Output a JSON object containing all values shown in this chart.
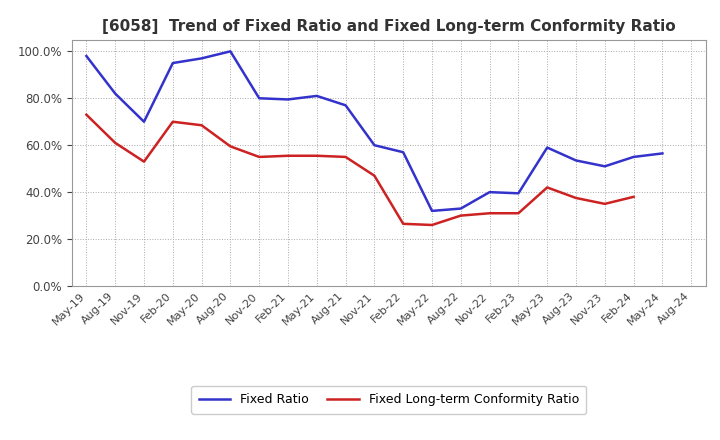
{
  "title": "[6058]  Trend of Fixed Ratio and Fixed Long-term Conformity Ratio",
  "x_labels": [
    "May-19",
    "Aug-19",
    "Nov-19",
    "Feb-20",
    "May-20",
    "Aug-20",
    "Nov-20",
    "Feb-21",
    "May-21",
    "Aug-21",
    "Nov-21",
    "Feb-22",
    "May-22",
    "Aug-22",
    "Nov-22",
    "Feb-23",
    "May-23",
    "Aug-23",
    "Nov-23",
    "Feb-24",
    "May-24",
    "Aug-24"
  ],
  "fixed_ratio": [
    0.98,
    0.82,
    0.7,
    0.95,
    0.97,
    1.0,
    0.8,
    0.795,
    0.81,
    0.77,
    0.6,
    0.57,
    0.32,
    0.33,
    0.4,
    0.395,
    0.59,
    0.535,
    0.51,
    0.55,
    0.565,
    null
  ],
  "fixed_lt_ratio": [
    0.73,
    0.61,
    0.53,
    0.7,
    0.685,
    0.595,
    0.55,
    0.555,
    0.555,
    0.55,
    0.47,
    0.265,
    0.26,
    0.3,
    0.31,
    0.31,
    0.42,
    0.375,
    0.35,
    0.38,
    null,
    null
  ],
  "blue_color": "#3333cc",
  "red_color": "#cc2222",
  "ylim": [
    0.0,
    1.05
  ],
  "yticks": [
    0.0,
    0.2,
    0.4,
    0.6,
    0.8,
    1.0
  ],
  "grid_color": "#aaaaaa",
  "background_color": "#ffffff",
  "legend_fixed": "Fixed Ratio",
  "legend_lt": "Fixed Long-term Conformity Ratio"
}
